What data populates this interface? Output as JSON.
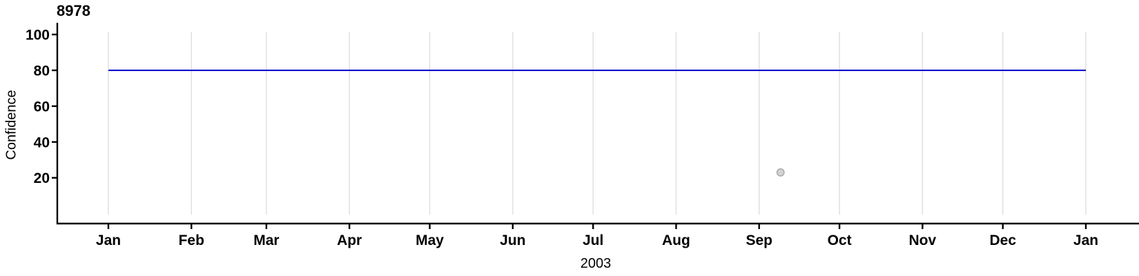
{
  "chart_data": {
    "type": "line",
    "title": "8978",
    "xlabel": "2003",
    "ylabel": "Confidence",
    "x_axis": {
      "kind": "date",
      "start": "Jan 2003",
      "end": "Jan 2004",
      "tick_labels": [
        "Jan",
        "Feb",
        "Mar",
        "Apr",
        "May",
        "Jun",
        "Jul",
        "Aug",
        "Sep",
        "Oct",
        "Nov",
        "Dec",
        "Jan"
      ],
      "tick_day_offsets": [
        0,
        31,
        59,
        90,
        120,
        151,
        181,
        212,
        243,
        273,
        304,
        334,
        365
      ],
      "grid": true
    },
    "y_axis": {
      "tick_labels": [
        "20",
        "40",
        "60",
        "80",
        "100"
      ],
      "tick_values": [
        20,
        40,
        60,
        80,
        100
      ],
      "range_shown": [
        0,
        100
      ],
      "grid": false
    },
    "series": [
      {
        "name": "confidence-line",
        "type": "line",
        "color": "#0000CC",
        "points": [
          {
            "day": 0,
            "value": 80
          },
          {
            "day": 365,
            "value": 80
          }
        ]
      },
      {
        "name": "observation-point",
        "type": "point",
        "fill": "#D3D3D3",
        "stroke": "#A6A6A6",
        "points": [
          {
            "day": 251,
            "value": 23
          }
        ]
      }
    ],
    "colors": {
      "axis": "#000000",
      "gridline": "#E0E0E0",
      "background": "#FFFFFF",
      "line": "#0000CC",
      "point_fill": "#D3D3D3",
      "point_stroke": "#A6A6A6"
    },
    "legend": null
  }
}
